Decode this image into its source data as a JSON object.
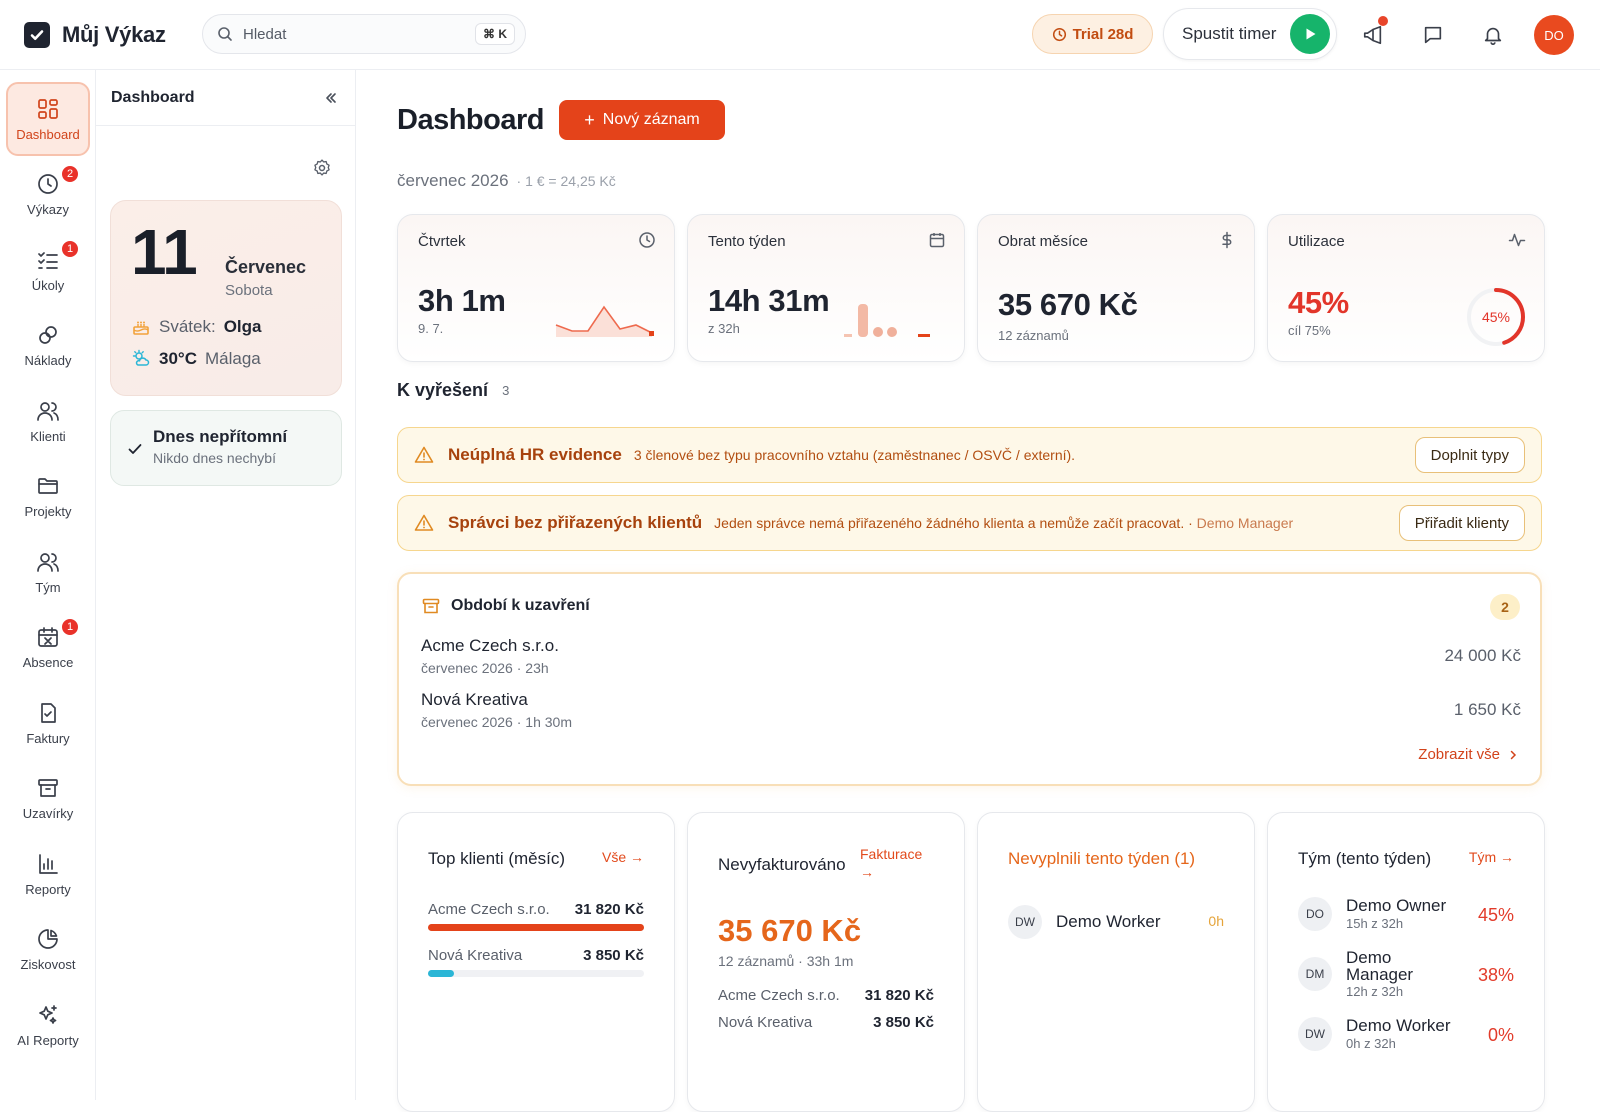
{
  "app": {
    "name": "Můj Výkaz"
  },
  "search": {
    "placeholder": "Hledat",
    "shortcut": "⌘ K"
  },
  "topbar": {
    "trial": "Trial 28d",
    "timer_label": "Spustit timer",
    "avatar": "DO"
  },
  "rail": [
    {
      "label": "Dashboard",
      "icon": "dashboard-icon",
      "active": true
    },
    {
      "label": "Výkazy",
      "icon": "clock-icon",
      "badge": "2"
    },
    {
      "label": "Úkoly",
      "icon": "tasks-icon",
      "badge": "1"
    },
    {
      "label": "Náklady",
      "icon": "coins-icon"
    },
    {
      "label": "Klienti",
      "icon": "clients-icon"
    },
    {
      "label": "Projekty",
      "icon": "folder-icon"
    },
    {
      "label": "Tým",
      "icon": "team-icon"
    },
    {
      "label": "Absence",
      "icon": "calendar-x-icon",
      "badge": "1"
    },
    {
      "label": "Faktury",
      "icon": "invoice-icon"
    },
    {
      "label": "Uzavírky",
      "icon": "archive-icon"
    },
    {
      "label": "Reporty",
      "icon": "bar-chart-icon"
    },
    {
      "label": "Ziskovost",
      "icon": "pie-chart-icon"
    },
    {
      "label": "AI Reporty",
      "icon": "sparkles-icon"
    }
  ],
  "panel": {
    "title": "Dashboard",
    "date": {
      "day": "11",
      "month": "Červenec",
      "weekday": "Sobota"
    },
    "nameday_label": "Svátek:",
    "nameday_name": "Olga",
    "temp": "30°C",
    "city": "Málaga",
    "absent_title": "Dnes nepřítomní",
    "absent_sub": "Nikdo dnes nechybí"
  },
  "main": {
    "title": "Dashboard",
    "new_button": "Nový záznam",
    "period": "červenec 2026",
    "rate": "· 1 € = 24,25 Kč",
    "stats": [
      {
        "label": "Čtvrtek",
        "value": "3h 1m",
        "sub": "9. 7.",
        "icon": "clock-icon"
      },
      {
        "label": "Tento týden",
        "value": "14h 31m",
        "sub": "z 32h",
        "icon": "calendar-icon"
      },
      {
        "label": "Obrat měsíce",
        "value": "35 670 Kč",
        "sub": "12 záznamů",
        "icon": "dollar-icon"
      },
      {
        "label": "Utilizace",
        "value": "45%",
        "sub": "cíl 75%",
        "icon": "activity-icon",
        "ring_label": "45%",
        "ring_fraction": 0.45
      }
    ],
    "resolve": {
      "title": "K vyřešení",
      "count": "3"
    },
    "alerts": [
      {
        "title": "Neúplná HR evidence",
        "desc": "3 členové bez typu pracovního vztahu (zaměstnanec / OSVČ / externí).",
        "extra": "",
        "button": "Doplnit typy"
      },
      {
        "title": "Správci bez přiřazených klientů",
        "desc": "Jeden správce nemá přiřazeného žádného klienta a nemůže začít pracovat. ·",
        "extra": "Demo Manager",
        "button": "Přiřadit klienty"
      }
    ],
    "closing": {
      "title": "Období k uzavření",
      "count": "2",
      "rows": [
        {
          "name": "Acme Czech s.r.o.",
          "sub": "červenec 2026 · 23h",
          "amount": "24 000 Kč"
        },
        {
          "name": "Nová Kreativa",
          "sub": "červenec 2026 · 1h 30m",
          "amount": "1 650 Kč"
        }
      ],
      "more": "Zobrazit vše"
    },
    "top_clients": {
      "title": "Top klienti (měsíc)",
      "link": "Vše →",
      "rows": [
        {
          "name": "Acme Czech s.r.o.",
          "value": "31 820 Kč",
          "share": 1.0,
          "color": "#e4431a"
        },
        {
          "name": "Nová Kreativa",
          "value": "3 850 Kč",
          "share": 0.12,
          "color": "#2bb6d6"
        }
      ]
    },
    "unbilled": {
      "title": "Nevyfakturováno",
      "link": "Fakturace →",
      "amount": "35 670 Kč",
      "sub": "12 záznamů · 33h 1m",
      "rows": [
        {
          "name": "Acme Czech s.r.o.",
          "value": "31 820 Kč"
        },
        {
          "name": "Nová Kreativa",
          "value": "3 850 Kč"
        }
      ]
    },
    "not_filled": {
      "title": "Nevyplnili tento týden (1)",
      "rows": [
        {
          "initials": "DW",
          "name": "Demo Worker",
          "hours": "0h"
        }
      ]
    },
    "team": {
      "title": "Tým (tento týden)",
      "link": "Tým →",
      "rows": [
        {
          "initials": "DO",
          "name": "Demo Owner",
          "sub": "15h z 32h",
          "pct": "45%"
        },
        {
          "initials": "DM",
          "name": "Demo Manager",
          "sub": "12h z 32h",
          "pct": "38%"
        },
        {
          "initials": "DW",
          "name": "Demo Worker",
          "sub": "0h z 32h",
          "pct": "0%"
        }
      ]
    }
  }
}
